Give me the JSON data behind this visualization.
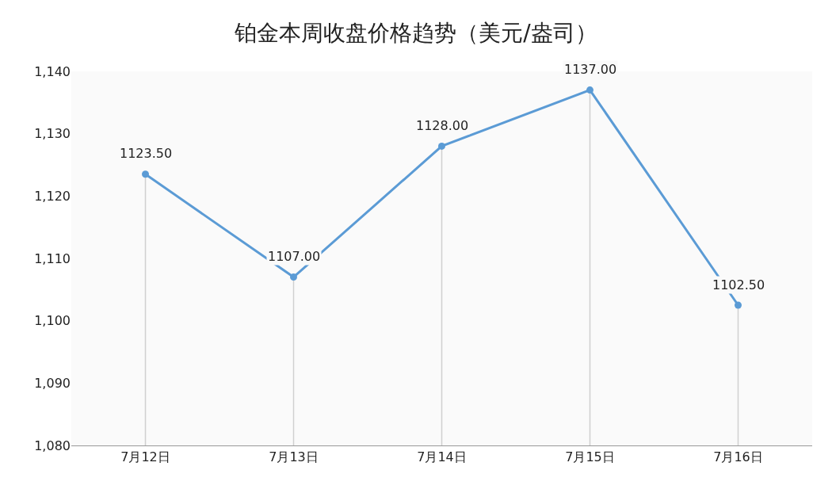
{
  "chart_data": {
    "type": "line",
    "title": "铂金本周收盘价格趋势（美元/盎司）",
    "categories": [
      "7月12日",
      "7月13日",
      "7月14日",
      "7月15日",
      "7月16日"
    ],
    "series": [
      {
        "color": "#5b9bd5",
        "values": [
          1123.5,
          1107,
          1128,
          1137,
          1102.5
        ],
        "value_labels": [
          "1123.50",
          "1107.00",
          "1128.00",
          "1137.00",
          "1102.50"
        ]
      }
    ],
    "ylim": [
      1080,
      1140
    ],
    "yticks": [
      {
        "value": 1080,
        "label": "1,080"
      },
      {
        "value": 1090,
        "label": "1,090"
      },
      {
        "value": 1100,
        "label": "1,100"
      },
      {
        "value": 1110,
        "label": "1,110"
      },
      {
        "value": 1120,
        "label": "1,120"
      },
      {
        "value": 1130,
        "label": "1,130"
      },
      {
        "value": 1140,
        "label": "1,140"
      }
    ],
    "grid": "x",
    "marker": "circle",
    "line_style": "solid"
  }
}
